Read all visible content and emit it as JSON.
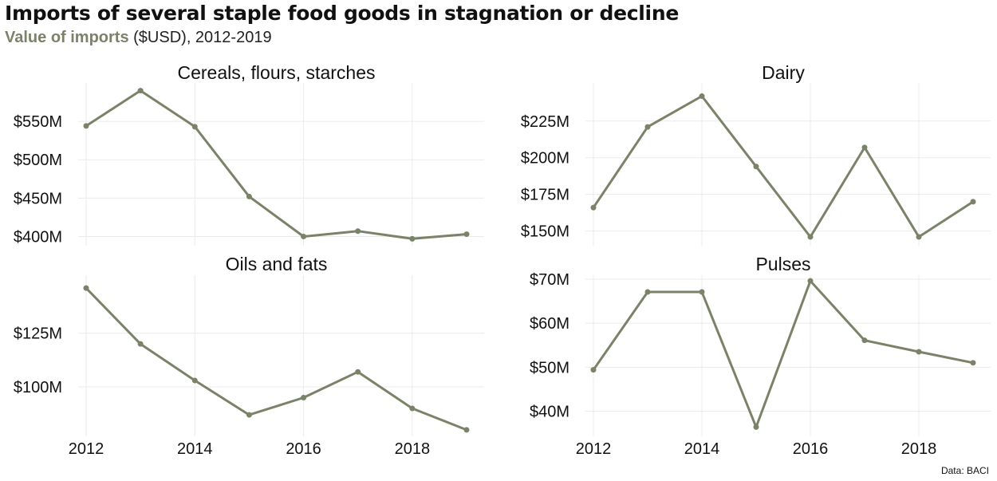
{
  "title": "Imports of several staple food goods in stagnation or decline",
  "subtitle": {
    "emphasis": "Value of imports",
    "rest": " ($USD), 2012-2019"
  },
  "caption": "Data: BACI",
  "colors": {
    "line": "#7a8268",
    "grid": "#ebebeb",
    "text": "#111111"
  },
  "chart_data": [
    {
      "type": "line",
      "title": "Cereals, flours, starches",
      "x": [
        2012,
        2013,
        2014,
        2015,
        2016,
        2017,
        2018,
        2019
      ],
      "values": [
        544,
        590,
        543,
        452,
        400,
        407,
        397,
        403
      ],
      "unit": "M USD",
      "ylim": [
        388,
        600
      ],
      "yticks": [
        400,
        450,
        500,
        550
      ],
      "ytick_labels": [
        "$400M",
        "$450M",
        "$500M",
        "$550M"
      ],
      "xticks": [
        2012,
        2014,
        2016,
        2018
      ],
      "xtick_labels": [
        "2012",
        "2014",
        "2016",
        "2018"
      ],
      "show_x_labels": false,
      "grid": true
    },
    {
      "type": "line",
      "title": "Dairy",
      "x": [
        2012,
        2013,
        2014,
        2015,
        2016,
        2017,
        2018,
        2019
      ],
      "values": [
        166,
        221,
        242,
        194,
        146,
        207,
        146,
        170
      ],
      "unit": "M USD",
      "ylim": [
        140,
        251
      ],
      "yticks": [
        150,
        175,
        200,
        225
      ],
      "ytick_labels": [
        "$150M",
        "$175M",
        "$200M",
        "$225M"
      ],
      "xticks": [
        2012,
        2014,
        2016,
        2018
      ],
      "xtick_labels": [
        "2012",
        "2014",
        "2016",
        "2018"
      ],
      "show_x_labels": false,
      "grid": true
    },
    {
      "type": "line",
      "title": "Oils and fats",
      "x": [
        2012,
        2013,
        2014,
        2015,
        2016,
        2017,
        2018,
        2019
      ],
      "values": [
        146,
        120,
        103,
        87,
        95,
        107,
        90,
        80
      ],
      "unit": "M USD",
      "ylim": [
        77,
        152
      ],
      "yticks": [
        100,
        125
      ],
      "ytick_labels": [
        "$100M",
        "$125M"
      ],
      "xticks": [
        2012,
        2014,
        2016,
        2018
      ],
      "xtick_labels": [
        "2012",
        "2014",
        "2016",
        "2018"
      ],
      "show_x_labels": true,
      "grid": true
    },
    {
      "type": "line",
      "title": "Pulses",
      "x": [
        2012,
        2013,
        2014,
        2015,
        2016,
        2017,
        2018,
        2019
      ],
      "values": [
        49.4,
        67.1,
        67.1,
        36.4,
        69.6,
        56.1,
        53.5,
        51.0
      ],
      "unit": "M USD",
      "ylim": [
        34.3,
        70.9
      ],
      "yticks": [
        40,
        50,
        60,
        70
      ],
      "ytick_labels": [
        "$40M",
        "$50M",
        "$60M",
        "$70M"
      ],
      "xticks": [
        2012,
        2014,
        2016,
        2018
      ],
      "xtick_labels": [
        "2012",
        "2014",
        "2016",
        "2018"
      ],
      "show_x_labels": true,
      "grid": true
    }
  ]
}
